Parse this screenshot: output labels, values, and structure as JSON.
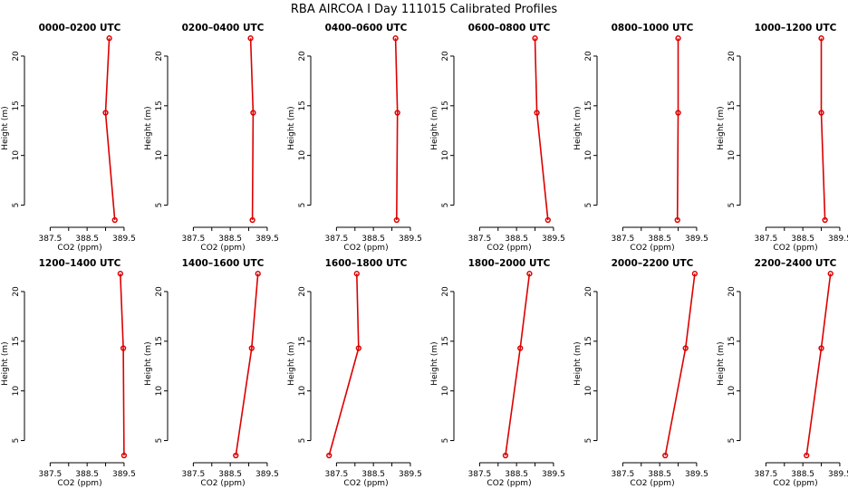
{
  "title": "RBA AIRCOA I  Day 111015  Calibrated Profiles",
  "chart_data": {
    "type": "line",
    "xlabel": "CO2 (ppm)",
    "ylabel": "Height (m)",
    "xlim": [
      387.0,
      389.6
    ],
    "ylim": [
      3.5,
      22.0
    ],
    "xticks": [
      387.5,
      388.0,
      388.5,
      389.0,
      389.5
    ],
    "xtick_labels": [
      "387.5",
      "",
      "388.5",
      "",
      "389.5"
    ],
    "yticks": [
      5,
      10,
      15,
      20
    ],
    "yticks_labels": [
      "5",
      "10",
      "15",
      "20"
    ],
    "heights": [
      3.5,
      14.3,
      21.8
    ],
    "series_color": "#dd0000",
    "panels": [
      {
        "title": "0000–0200 UTC",
        "co2": [
          389.25,
          389.0,
          389.1
        ]
      },
      {
        "title": "0200–0400 UTC",
        "co2": [
          389.1,
          389.12,
          389.05
        ]
      },
      {
        "title": "0400–0600 UTC",
        "co2": [
          389.13,
          389.15,
          389.1
        ]
      },
      {
        "title": "0600–0800 UTC",
        "co2": [
          389.35,
          389.05,
          389.0
        ]
      },
      {
        "title": "0800–1000 UTC",
        "co2": [
          388.98,
          389.0,
          389.0
        ]
      },
      {
        "title": "1000–1200 UTC",
        "co2": [
          389.1,
          389.0,
          389.0
        ]
      },
      {
        "title": "1200–1400 UTC",
        "co2": [
          389.5,
          389.48,
          389.4
        ]
      },
      {
        "title": "1400–1600 UTC",
        "co2": [
          388.65,
          389.08,
          389.25
        ]
      },
      {
        "title": "1600–1800 UTC",
        "co2": [
          387.3,
          388.1,
          388.05
        ]
      },
      {
        "title": "1800–2000 UTC",
        "co2": [
          388.2,
          388.6,
          388.85
        ]
      },
      {
        "title": "2000–2200 UTC",
        "co2": [
          388.65,
          389.2,
          389.45
        ]
      },
      {
        "title": "2200–2400 UTC",
        "co2": [
          388.6,
          389.0,
          389.25
        ]
      }
    ]
  }
}
